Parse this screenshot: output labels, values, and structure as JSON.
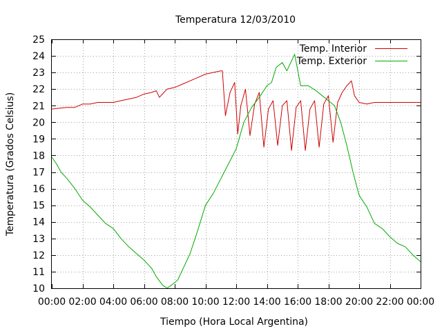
{
  "chart_data": {
    "type": "line",
    "title": "Temperatura 12/03/2010",
    "xlabel": "Tiempo (Hora Local Argentina)",
    "ylabel": "Temperatura (Grados Celsius)",
    "xlim": [
      0,
      24
    ],
    "ylim": [
      10,
      25
    ],
    "grid": true,
    "legend_position": "top-right",
    "x_ticks": [
      {
        "value": 0,
        "label": "00:00"
      },
      {
        "value": 2,
        "label": "02:00"
      },
      {
        "value": 4,
        "label": "04:00"
      },
      {
        "value": 6,
        "label": "06:00"
      },
      {
        "value": 8,
        "label": "08:00"
      },
      {
        "value": 10,
        "label": "10:00"
      },
      {
        "value": 12,
        "label": "12:00"
      },
      {
        "value": 14,
        "label": "14:00"
      },
      {
        "value": 16,
        "label": "16:00"
      },
      {
        "value": 18,
        "label": "18:00"
      },
      {
        "value": 20,
        "label": "20:00"
      },
      {
        "value": 22,
        "label": "22:00"
      },
      {
        "value": 24,
        "label": "00:00"
      }
    ],
    "y_ticks": [
      {
        "value": 10,
        "label": "10"
      },
      {
        "value": 11,
        "label": "11"
      },
      {
        "value": 12,
        "label": "12"
      },
      {
        "value": 13,
        "label": "13"
      },
      {
        "value": 14,
        "label": "14"
      },
      {
        "value": 15,
        "label": "15"
      },
      {
        "value": 16,
        "label": "16"
      },
      {
        "value": 17,
        "label": "17"
      },
      {
        "value": 18,
        "label": "18"
      },
      {
        "value": 19,
        "label": "19"
      },
      {
        "value": 20,
        "label": "20"
      },
      {
        "value": 21,
        "label": "21"
      },
      {
        "value": 22,
        "label": "22"
      },
      {
        "value": 23,
        "label": "23"
      },
      {
        "value": 24,
        "label": "24"
      },
      {
        "value": 25,
        "label": "25"
      }
    ],
    "series": [
      {
        "name": "Temp. Interior",
        "color": "#cc0000",
        "x": [
          0,
          0.5,
          1,
          1.5,
          2,
          2.5,
          3,
          3.5,
          4,
          4.5,
          5,
          5.5,
          6,
          6.5,
          6.8,
          7,
          7.2,
          7.5,
          8,
          8.5,
          9,
          9.5,
          10,
          10.5,
          11,
          11.1,
          11.3,
          11.6,
          11.9,
          12.1,
          12.3,
          12.6,
          12.9,
          13.2,
          13.5,
          13.8,
          14.1,
          14.4,
          14.7,
          15,
          15.3,
          15.6,
          15.9,
          16.2,
          16.5,
          16.8,
          17.1,
          17.4,
          17.7,
          18,
          18.3,
          18.6,
          18.9,
          19.2,
          19.5,
          19.7,
          20,
          20.5,
          21,
          22,
          23,
          24
        ],
        "y": [
          20.8,
          20.85,
          20.9,
          20.9,
          21.1,
          21.1,
          21.2,
          21.2,
          21.2,
          21.3,
          21.4,
          21.5,
          21.7,
          21.8,
          21.9,
          21.5,
          21.7,
          22.0,
          22.1,
          22.3,
          22.5,
          22.7,
          22.9,
          23.0,
          23.1,
          23.1,
          20.4,
          21.8,
          22.4,
          19.3,
          21.0,
          22.0,
          19.2,
          21.1,
          21.8,
          18.5,
          20.8,
          21.3,
          18.6,
          21.0,
          21.3,
          18.3,
          20.9,
          21.3,
          18.3,
          20.8,
          21.3,
          18.5,
          21.1,
          21.6,
          18.8,
          21.2,
          21.8,
          22.2,
          22.5,
          21.6,
          21.2,
          21.1,
          21.2,
          21.2,
          21.2,
          21.2
        ]
      },
      {
        "name": "Temp. Exterior",
        "color": "#00aa00",
        "x": [
          0,
          0.3,
          0.6,
          1,
          1.5,
          2,
          2.5,
          3,
          3.5,
          4,
          4.5,
          5,
          5.5,
          6,
          6.5,
          6.8,
          7.2,
          7.5,
          7.8,
          8.2,
          8.6,
          9,
          9.5,
          10,
          10.5,
          11,
          11.5,
          12,
          12.5,
          13,
          13.5,
          14,
          14.3,
          14.6,
          15,
          15.3,
          15.5,
          15.8,
          16.2,
          16.7,
          17.2,
          17.6,
          18,
          18.4,
          18.8,
          19.2,
          19.6,
          20,
          20.5,
          21,
          21.5,
          22,
          22.5,
          23,
          23.5,
          24
        ],
        "y": [
          17.9,
          17.5,
          17.0,
          16.6,
          16.0,
          15.3,
          14.9,
          14.4,
          13.9,
          13.6,
          13.0,
          12.5,
          12.1,
          11.7,
          11.2,
          10.7,
          10.2,
          10.0,
          10.2,
          10.5,
          11.3,
          12.1,
          13.5,
          15.0,
          15.7,
          16.6,
          17.5,
          18.4,
          20.0,
          20.9,
          21.5,
          22.2,
          22.4,
          23.3,
          23.6,
          23.1,
          23.5,
          24.1,
          22.2,
          22.2,
          21.9,
          21.6,
          21.3,
          21.0,
          20.0,
          18.6,
          17.0,
          15.6,
          14.9,
          13.9,
          13.6,
          13.1,
          12.7,
          12.5,
          12.0,
          11.6
        ]
      }
    ]
  }
}
